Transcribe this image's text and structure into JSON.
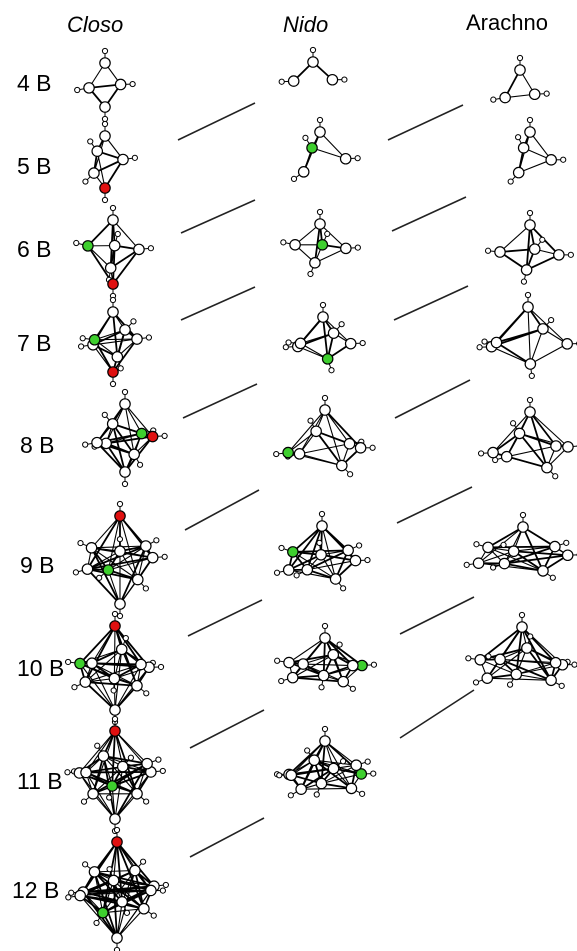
{
  "headers": {
    "closo": "Closo",
    "nido": "Nido",
    "arachno": "Arachno"
  },
  "rows": [
    {
      "label": "4 B"
    },
    {
      "label": "5 B"
    },
    {
      "label": "6 B"
    },
    {
      "label": "7 B"
    },
    {
      "label": "8 B"
    },
    {
      "label": "9 B"
    },
    {
      "label": "10 B"
    },
    {
      "label": "11 B"
    },
    {
      "label": "12 B"
    }
  ],
  "colors": {
    "highlight_red": "#e01010",
    "highlight_green": "#3ecf2e",
    "atom": "#ffffff",
    "bond": "#000000"
  }
}
